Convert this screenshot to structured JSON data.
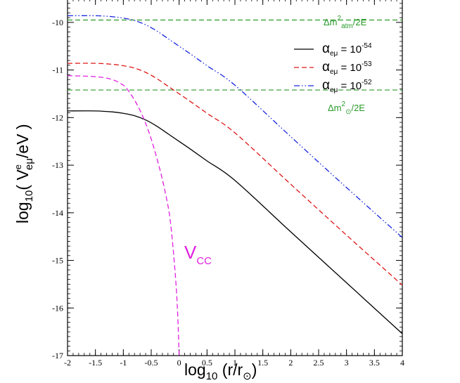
{
  "chart_data": {
    "type": "line",
    "xlabel": {
      "base": "log",
      "sub": "10",
      "rest": " (r/r",
      "sub2": "⊙",
      "close": ")"
    },
    "ylabel": {
      "base": "log",
      "sub": "10",
      "paren": "( V",
      "sup": "e",
      "sub2": "eμ",
      "rest": "/eV )"
    },
    "xlim": [
      -2,
      4
    ],
    "ylim": [
      -17,
      -9.5
    ],
    "xticks": [
      "-2",
      "-1.5",
      "-1",
      "-0.5",
      "0",
      "0.5",
      "1",
      "1.5",
      "2",
      "2.5",
      "3",
      "3.5",
      "4"
    ],
    "xtick_values": [
      -2,
      -1.5,
      -1,
      -0.5,
      0,
      0.5,
      1,
      1.5,
      2,
      2.5,
      3,
      3.5,
      4
    ],
    "yticks": [
      "-17",
      "-16",
      "-15",
      "-14",
      "-13",
      "-12",
      "-11",
      "-10"
    ],
    "ytick_values": [
      -17,
      -16,
      -15,
      -14,
      -13,
      -12,
      -11,
      -10
    ],
    "series": [
      {
        "name": "alpha_eμ = 10^-54",
        "color": "#000000",
        "dash": "solid",
        "x": [
          -2,
          -1.5,
          -1.2,
          -1.0,
          -0.8,
          -0.6,
          -0.4,
          -0.2,
          0.0,
          0.2,
          0.5,
          1.0,
          2.0,
          3.0,
          4.0
        ],
        "y": [
          -11.86,
          -11.86,
          -11.88,
          -11.91,
          -11.96,
          -12.05,
          -12.18,
          -12.34,
          -12.5,
          -12.66,
          -12.91,
          -13.32,
          -14.4,
          -15.47,
          -16.54
        ]
      },
      {
        "name": "alpha_eμ = 10^-53",
        "color": "#e01818",
        "dash": "dash",
        "x": [
          -2,
          -1.5,
          -1.2,
          -1.0,
          -0.8,
          -0.6,
          -0.4,
          -0.2,
          0.0,
          0.2,
          0.5,
          1.0,
          2.0,
          3.0,
          4.0
        ],
        "y": [
          -10.86,
          -10.86,
          -10.88,
          -10.91,
          -10.96,
          -11.05,
          -11.18,
          -11.34,
          -11.5,
          -11.66,
          -11.91,
          -12.32,
          -13.4,
          -14.47,
          -15.52
        ]
      },
      {
        "name": "alpha_eμ = 10^-52",
        "color": "#1828e0",
        "dash": "dashdotdot",
        "x": [
          -2,
          -1.5,
          -1.2,
          -1.0,
          -0.8,
          -0.6,
          -0.4,
          -0.2,
          0.0,
          0.2,
          0.5,
          1.0,
          2.0,
          3.0,
          4.0
        ],
        "y": [
          -9.86,
          -9.86,
          -9.88,
          -9.91,
          -9.96,
          -10.05,
          -10.18,
          -10.34,
          -10.5,
          -10.66,
          -10.91,
          -11.32,
          -12.4,
          -13.47,
          -14.52
        ]
      },
      {
        "name": "V_CC",
        "color": "#e020e0",
        "dash": "dash",
        "x": [
          -2,
          -1.5,
          -1.2,
          -1.0,
          -0.9,
          -0.8,
          -0.7,
          -0.6,
          -0.5,
          -0.4,
          -0.3,
          -0.2,
          -0.15,
          -0.1,
          -0.05,
          -0.02,
          0.0
        ],
        "y": [
          -11.12,
          -11.14,
          -11.2,
          -11.32,
          -11.45,
          -11.63,
          -11.85,
          -12.12,
          -12.45,
          -12.85,
          -13.3,
          -13.85,
          -14.25,
          -14.85,
          -15.6,
          -16.3,
          -17.0
        ]
      }
    ],
    "hlines": [
      {
        "y": -9.95,
        "color": "#2a9a2a",
        "dash": "dash",
        "label": {
          "pre": "Δm",
          "sup": "2",
          "sub": "atm",
          "post": "/2E"
        }
      },
      {
        "y": -11.42,
        "color": "#2a9a2a",
        "dash": "dash",
        "label": {
          "pre": "Δm",
          "sup": "2",
          "sub": "⊙",
          "post": "/2E"
        }
      }
    ],
    "legend": {
      "placement": "top-right",
      "entries": [
        {
          "symbol": "α",
          "sub": "eμ",
          "text": " = 10",
          "sup": "-54"
        },
        {
          "symbol": "α",
          "sub": "eμ",
          "text": " = 10",
          "sup": "-53"
        },
        {
          "symbol": "α",
          "sub": "eμ",
          "text": " = 10",
          "sup": "-52"
        }
      ]
    },
    "annotation": {
      "main": "V",
      "sub": "CC"
    }
  }
}
